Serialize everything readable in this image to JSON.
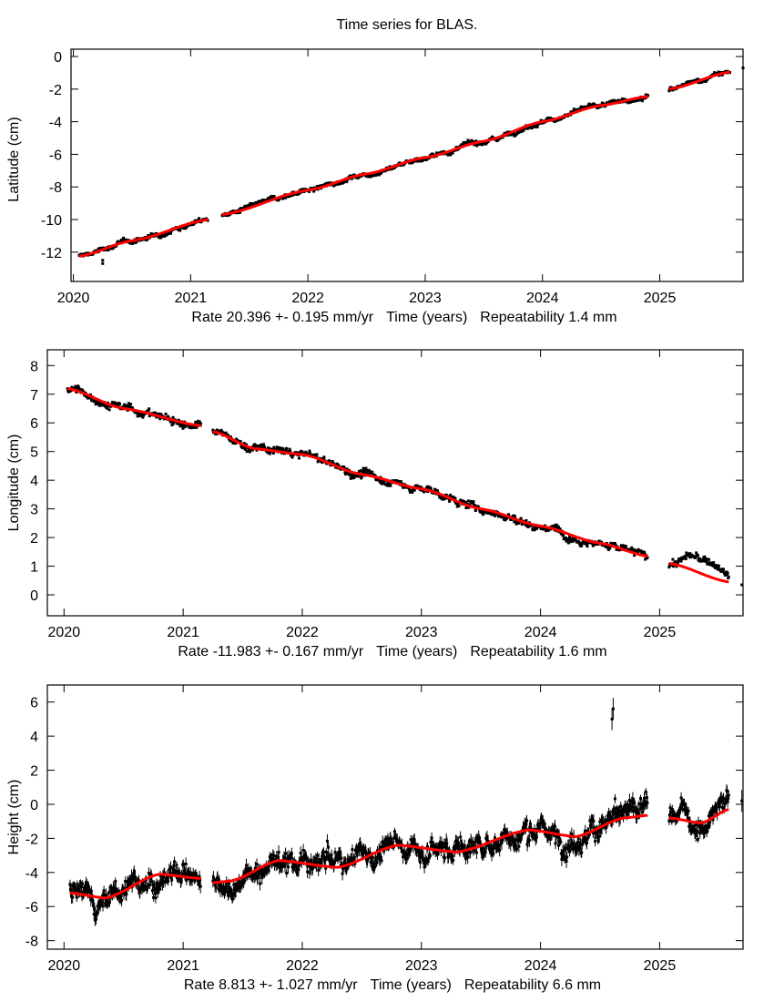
{
  "chart_data": {
    "title": "Time series for BLAS.",
    "type": "scatter",
    "colors": {
      "data": "#000000",
      "fit": "#ff0000"
    },
    "panels": [
      {
        "name": "latitude",
        "ylabel": "Latitude (cm)",
        "xlabel": "Time (years)",
        "rate_text": "Rate 20.396 +- 0.195 mm/yr",
        "repeat_text": "Repeatability 1.4 mm",
        "xlim": [
          2019.98,
          2025.71
        ],
        "ylim": [
          -13.8,
          0.45
        ],
        "xticks": [
          "2020",
          "2021",
          "2022",
          "2023",
          "2024",
          "2025"
        ],
        "yticks": [
          "0",
          "-2",
          "-4",
          "-6",
          "-8",
          "-10",
          "-12"
        ],
        "noise": 0.12,
        "errorbars": false,
        "fit": [
          [
            [
              2020.05,
              -12.25
            ],
            [
              2020.5,
              -11.3
            ],
            [
              2021.15,
              -10.0
            ]
          ],
          [
            [
              2021.27,
              -9.7
            ],
            [
              2022.0,
              -8.2
            ],
            [
              2022.5,
              -7.2
            ],
            [
              2023.0,
              -6.2
            ],
            [
              2023.5,
              -5.2
            ],
            [
              2024.0,
              -4.0
            ],
            [
              2024.5,
              -3.0
            ],
            [
              2024.9,
              -2.45
            ]
          ],
          [
            [
              2025.08,
              -2.0
            ],
            [
              2025.6,
              -0.95
            ]
          ]
        ],
        "offsets": [],
        "outliers": [
          [
            2020.25,
            -12.7
          ],
          [
            2020.25,
            -12.5
          ],
          [
            2025.71,
            -0.7
          ]
        ]
      },
      {
        "name": "longitude",
        "ylabel": "Longitude (cm)",
        "xlabel": "Time (years)",
        "rate_text": "Rate -11.983 +- 0.167 mm/yr",
        "repeat_text": "Repeatability 1.6 mm",
        "xlim": [
          2019.86,
          2025.7
        ],
        "ylim": [
          -0.73,
          8.55
        ],
        "xticks": [
          "2020",
          "2021",
          "2022",
          "2023",
          "2024",
          "2025"
        ],
        "yticks": [
          "8",
          "7",
          "6",
          "5",
          "4",
          "3",
          "2",
          "1",
          "0"
        ],
        "noise": 0.12,
        "errorbars": false,
        "fit": [
          [
            [
              2020.03,
              7.2
            ],
            [
              2020.5,
              6.5
            ],
            [
              2021.15,
              5.9
            ]
          ],
          [
            [
              2021.25,
              5.7
            ],
            [
              2021.6,
              5.1
            ],
            [
              2022.0,
              4.9
            ],
            [
              2022.5,
              4.2
            ],
            [
              2023.0,
              3.7
            ],
            [
              2023.5,
              3.0
            ],
            [
              2024.0,
              2.4
            ],
            [
              2024.5,
              1.8
            ],
            [
              2024.9,
              1.35
            ]
          ],
          [
            [
              2025.08,
              1.1
            ],
            [
              2025.58,
              0.45
            ]
          ]
        ],
        "offsets": [
          [
            2025.1,
            0.0
          ],
          [
            2025.25,
            0.45
          ],
          [
            2025.45,
            0.5
          ],
          [
            2025.58,
            0.2
          ]
        ],
        "outliers": [
          [
            2025.69,
            0.35
          ]
        ]
      },
      {
        "name": "height",
        "ylabel": "Height (cm)",
        "xlabel": "Time (years)",
        "rate_text": "Rate 8.813 +- 1.027 mm/yr",
        "repeat_text": "Repeatability 6.6 mm",
        "xlim": [
          2019.86,
          2025.7
        ],
        "ylim": [
          -8.5,
          7.0
        ],
        "xticks": [
          "2020",
          "2021",
          "2022",
          "2023",
          "2024",
          "2025"
        ],
        "yticks": [
          "6",
          "4",
          "2",
          "0",
          "-2",
          "-4",
          "-6",
          "-8"
        ],
        "noise": 0.55,
        "errorbars": true,
        "fit": [
          [
            [
              2020.05,
              -5.2
            ],
            [
              2020.35,
              -5.5
            ],
            [
              2020.8,
              -4.1
            ],
            [
              2021.15,
              -4.35
            ]
          ],
          [
            [
              2021.25,
              -4.6
            ],
            [
              2021.4,
              -4.5
            ],
            [
              2021.8,
              -3.3
            ],
            [
              2022.3,
              -3.7
            ],
            [
              2022.8,
              -2.4
            ],
            [
              2023.3,
              -2.8
            ],
            [
              2023.9,
              -1.5
            ],
            [
              2024.3,
              -1.9
            ],
            [
              2024.7,
              -0.8
            ],
            [
              2024.9,
              -0.65
            ]
          ],
          [
            [
              2025.08,
              -0.8
            ],
            [
              2025.35,
              -1.1
            ],
            [
              2025.58,
              -0.3
            ]
          ]
        ],
        "offsets": [],
        "outliers": [
          [
            2024.6,
            5.0
          ],
          [
            2024.61,
            5.6
          ],
          [
            2025.69,
            0.2
          ]
        ]
      }
    ]
  }
}
